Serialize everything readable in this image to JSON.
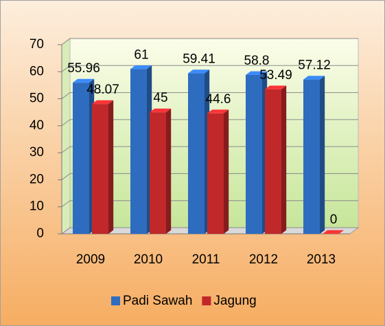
{
  "chart_data": {
    "type": "bar3d",
    "categories": [
      "2009",
      "2010",
      "2011",
      "2012",
      "2013"
    ],
    "series": [
      {
        "name": "Padi Sawah",
        "color": "#2e6cc0",
        "values": [
          55.96,
          61,
          59.41,
          58.8,
          57.12
        ]
      },
      {
        "name": "Jagung",
        "color": "#c0282a",
        "values": [
          48.07,
          45,
          44.6,
          53.49,
          0
        ]
      }
    ],
    "ylim": [
      0,
      70
    ],
    "yticks": [
      0,
      10,
      20,
      30,
      40,
      50,
      60,
      70
    ],
    "grid": true,
    "legend": "bottom"
  }
}
